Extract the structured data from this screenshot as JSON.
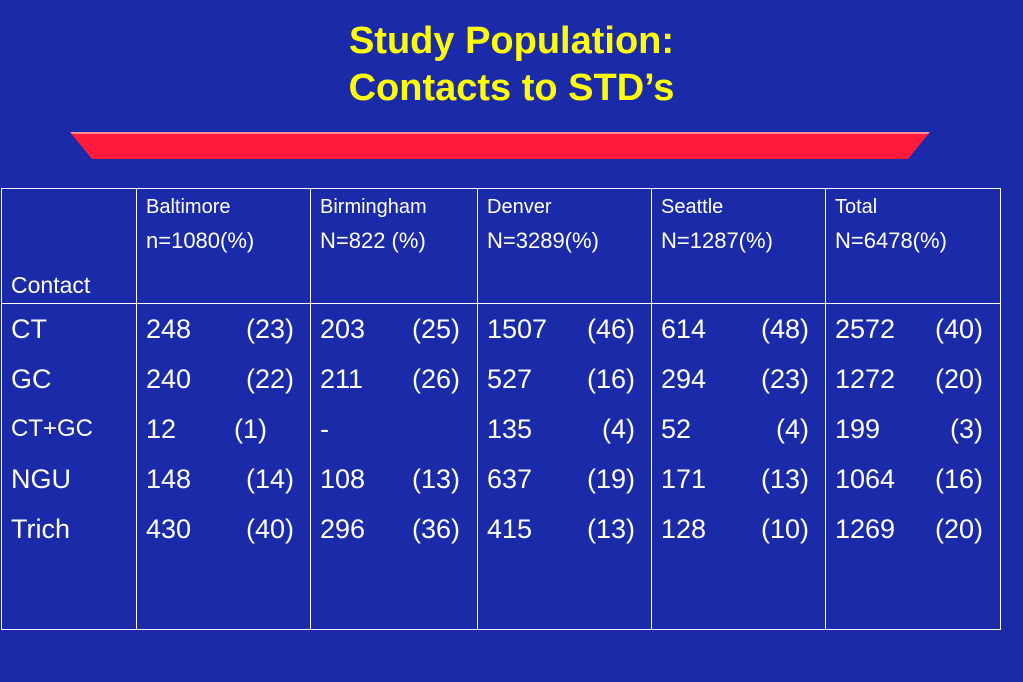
{
  "slide": {
    "title_line1": "Study Population:",
    "title_line2": "Contacts to STD’s",
    "accent_color": "#ff1a3c",
    "background_color": "#1a2aa8",
    "title_color": "#ffff00"
  },
  "table": {
    "contact_header": "Contact",
    "columns": [
      {
        "name": "Baltimore",
        "n": "n=1080(%)"
      },
      {
        "name": "Birmingham",
        "n": "N=822 (%)"
      },
      {
        "name": "Denver",
        "n": "N=3289(%)"
      },
      {
        "name": "Seattle",
        "n": "N=1287(%)"
      },
      {
        "name": "Total",
        "n": "N=6478(%)"
      }
    ],
    "contacts": [
      "CT",
      "GC",
      "CT+GC",
      "NGU",
      "Trich"
    ],
    "cells": {
      "baltimore": [
        {
          "num": "248",
          "pct": "(23)"
        },
        {
          "num": "240",
          "pct": "(22)"
        },
        {
          "num": "12",
          "pct": "(1)"
        },
        {
          "num": "148",
          "pct": "(14)"
        },
        {
          "num": "430",
          "pct": "(40)"
        }
      ],
      "birmingham": [
        {
          "num": "203",
          "pct": "(25)"
        },
        {
          "num": "211",
          "pct": "(26)"
        },
        {
          "num": "-",
          "pct": ""
        },
        {
          "num": "108",
          "pct": "(13)"
        },
        {
          "num": "296",
          "pct": "(36)"
        }
      ],
      "denver": [
        {
          "num": "1507",
          "pct": "(46)"
        },
        {
          "num": "527",
          "pct": "(16)"
        },
        {
          "num": "135",
          "pct": "(4)"
        },
        {
          "num": "637",
          "pct": "(19)"
        },
        {
          "num": "415",
          "pct": "(13)"
        }
      ],
      "seattle": [
        {
          "num": "614",
          "pct": "(48)"
        },
        {
          "num": "294",
          "pct": "(23)"
        },
        {
          "num": "52",
          "pct": "(4)"
        },
        {
          "num": "171",
          "pct": "(13)"
        },
        {
          "num": "128",
          "pct": "(10)"
        }
      ],
      "total": [
        {
          "num": "2572",
          "pct": "(40)"
        },
        {
          "num": "1272",
          "pct": "(20)"
        },
        {
          "num": "199",
          "pct": "(3)"
        },
        {
          "num": "1064",
          "pct": "(16)"
        },
        {
          "num": "1269",
          "pct": "(20)"
        }
      ]
    }
  }
}
